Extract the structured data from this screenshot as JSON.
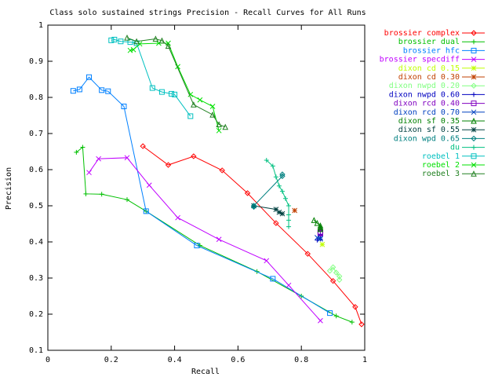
{
  "chart_data": {
    "type": "line",
    "title": "Class solo sustained strings Precision - Recall Curves for All Runs",
    "xlabel": "Recall",
    "ylabel": "Precision",
    "xlim": [
      0,
      1
    ],
    "ylim": [
      0.1,
      1
    ],
    "xticks": [
      "0",
      "0.2",
      "0.4",
      "0.6",
      "0.8",
      "1"
    ],
    "yticks": [
      "0.1",
      "0.2",
      "0.3",
      "0.4",
      "0.5",
      "0.6",
      "0.7",
      "0.8",
      "0.9",
      "1"
    ],
    "grid": false,
    "legend_position": "outside-right",
    "series": [
      {
        "name": "brossier complex",
        "color": "#ff0000",
        "marker": "diamond",
        "x": [
          0.3,
          0.38,
          0.46,
          0.55,
          0.63,
          0.72,
          0.82,
          0.9,
          0.97,
          0.99
        ],
        "y": [
          0.665,
          0.613,
          0.637,
          0.598,
          0.535,
          0.452,
          0.367,
          0.292,
          0.22,
          0.172
        ]
      },
      {
        "name": "brossier dual",
        "color": "#00c000",
        "marker": "plus",
        "x": [
          0.09,
          0.11,
          0.12,
          0.17,
          0.25,
          0.31,
          0.48,
          0.66,
          0.8,
          0.91,
          0.96
        ],
        "y": [
          0.648,
          0.662,
          0.533,
          0.532,
          0.517,
          0.485,
          0.39,
          0.318,
          0.25,
          0.195,
          0.178
        ]
      },
      {
        "name": "brossier hfc",
        "color": "#0080ff",
        "marker": "square",
        "x": [
          0.08,
          0.1,
          0.13,
          0.17,
          0.19,
          0.24,
          0.31,
          0.47,
          0.71,
          0.89
        ],
        "y": [
          0.818,
          0.822,
          0.856,
          0.82,
          0.817,
          0.775,
          0.485,
          0.39,
          0.298,
          0.203
        ]
      },
      {
        "name": "brossier specdiff",
        "color": "#c000ff",
        "marker": "x",
        "x": [
          0.13,
          0.16,
          0.25,
          0.32,
          0.41,
          0.54,
          0.69,
          0.76,
          0.86
        ],
        "y": [
          0.592,
          0.63,
          0.633,
          0.557,
          0.467,
          0.407,
          0.348,
          0.28,
          0.182
        ]
      },
      {
        "name": "dixon cd 0.15",
        "color": "#c0ff00",
        "marker": "star",
        "x": [
          0.866
        ],
        "y": [
          0.393
        ]
      },
      {
        "name": "dixon cd 0.30",
        "color": "#c04000",
        "marker": "asterisk",
        "x": [
          0.779
        ],
        "y": [
          0.487
        ]
      },
      {
        "name": "dixon nwpd 0.20",
        "color": "#80ff80",
        "marker": "diamond",
        "x": [
          0.89,
          0.9,
          0.91,
          0.92,
          0.92
        ],
        "y": [
          0.32,
          0.33,
          0.315,
          0.305,
          0.295
        ]
      },
      {
        "name": "dixon nwpd 0.60",
        "color": "#0000c0",
        "marker": "plus",
        "x": [
          0.85,
          0.86,
          0.86
        ],
        "y": [
          0.405,
          0.408,
          0.42
        ]
      },
      {
        "name": "dixon rcd 0.40",
        "color": "#8000c0",
        "marker": "square",
        "x": [
          0.86,
          0.86,
          0.86
        ],
        "y": [
          0.425,
          0.428,
          0.423
        ]
      },
      {
        "name": "dixon rcd 0.70",
        "color": "#0040c0",
        "marker": "x",
        "x": [
          0.86,
          0.86,
          0.85
        ],
        "y": [
          0.41,
          0.408,
          0.412
        ]
      },
      {
        "name": "dixon sf 0.35",
        "color": "#008000",
        "marker": "triangle",
        "x": [
          0.84,
          0.85,
          0.86,
          0.86,
          0.86
        ],
        "y": [
          0.46,
          0.452,
          0.445,
          0.44,
          0.435
        ]
      },
      {
        "name": "dixon sf 0.55",
        "color": "#004040",
        "marker": "asterisk",
        "x": [
          0.65,
          0.72,
          0.73,
          0.74
        ],
        "y": [
          0.5,
          0.49,
          0.482,
          0.478
        ]
      },
      {
        "name": "dixon wpd 0.65",
        "color": "#008080",
        "marker": "diamond",
        "x": [
          0.65,
          0.65,
          0.74,
          0.74
        ],
        "y": [
          0.497,
          0.5,
          0.582,
          0.587
        ]
      },
      {
        "name": "du",
        "color": "#00c080",
        "marker": "plus",
        "x": [
          0.69,
          0.71,
          0.72,
          0.73,
          0.74,
          0.75,
          0.76,
          0.76,
          0.76,
          0.76
        ],
        "y": [
          0.626,
          0.61,
          0.58,
          0.555,
          0.54,
          0.52,
          0.5,
          0.475,
          0.46,
          0.442
        ]
      },
      {
        "name": "roebel 1",
        "color": "#00c0c0",
        "marker": "square",
        "x": [
          0.2,
          0.21,
          0.23,
          0.26,
          0.28,
          0.33,
          0.36,
          0.39,
          0.4,
          0.45
        ],
        "y": [
          0.958,
          0.96,
          0.955,
          0.953,
          0.95,
          0.826,
          0.815,
          0.81,
          0.808,
          0.748
        ]
      },
      {
        "name": "roebel 2",
        "color": "#00e000",
        "marker": "x",
        "x": [
          0.26,
          0.27,
          0.29,
          0.35,
          0.38,
          0.41,
          0.45,
          0.48,
          0.52,
          0.54
        ],
        "y": [
          0.93,
          0.932,
          0.948,
          0.95,
          0.95,
          0.885,
          0.808,
          0.793,
          0.775,
          0.708
        ]
      },
      {
        "name": "roebel 3",
        "color": "#208020",
        "marker": "triangle",
        "x": [
          0.25,
          0.28,
          0.34,
          0.36,
          0.38,
          0.46,
          0.52,
          0.54,
          0.56
        ],
        "y": [
          0.965,
          0.955,
          0.962,
          0.957,
          0.942,
          0.78,
          0.752,
          0.725,
          0.718
        ]
      }
    ]
  }
}
